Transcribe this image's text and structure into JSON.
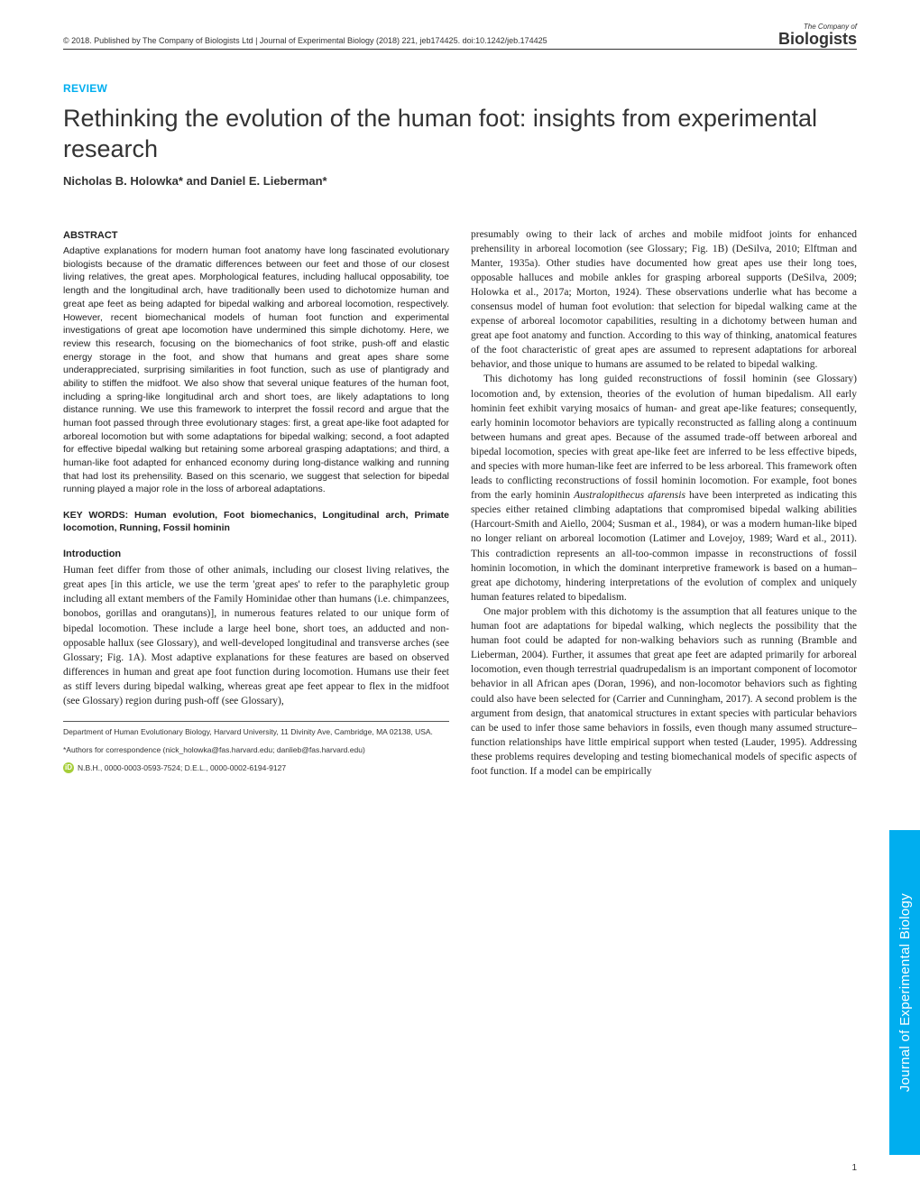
{
  "header": {
    "copyright_line": "© 2018. Published by The Company of Biologists Ltd | Journal of Experimental Biology (2018) 221, jeb174425. doi:10.1242/jeb.174425"
  },
  "logo": {
    "small": "The Company of",
    "big": "Biologists"
  },
  "review_label": "REVIEW",
  "title": "Rethinking the evolution of the human foot: insights from experimental research",
  "authors": "Nicholas B. Holowka* and Daniel E. Lieberman*",
  "abstract_head": "ABSTRACT",
  "abstract_body": "Adaptive explanations for modern human foot anatomy have long fascinated evolutionary biologists because of the dramatic differences between our feet and those of our closest living relatives, the great apes. Morphological features, including hallucal opposability, toe length and the longitudinal arch, have traditionally been used to dichotomize human and great ape feet as being adapted for bipedal walking and arboreal locomotion, respectively. However, recent biomechanical models of human foot function and experimental investigations of great ape locomotion have undermined this simple dichotomy. Here, we review this research, focusing on the biomechanics of foot strike, push-off and elastic energy storage in the foot, and show that humans and great apes share some underappreciated, surprising similarities in foot function, such as use of plantigrady and ability to stiffen the midfoot. We also show that several unique features of the human foot, including a spring-like longitudinal arch and short toes, are likely adaptations to long distance running. We use this framework to interpret the fossil record and argue that the human foot passed through three evolutionary stages: first, a great ape-like foot adapted for arboreal locomotion but with some adaptations for bipedal walking; second, a foot adapted for effective bipedal walking but retaining some arboreal grasping adaptations; and third, a human-like foot adapted for enhanced economy during long-distance walking and running that had lost its prehensility. Based on this scenario, we suggest that selection for bipedal running played a major role in the loss of arboreal adaptations.",
  "keywords": "KEY WORDS: Human evolution, Foot biomechanics, Longitudinal arch, Primate locomotion, Running, Fossil hominin",
  "intro_head": "Introduction",
  "intro_p1": "Human feet differ from those of other animals, including our closest living relatives, the great apes [in this article, we use the term 'great apes' to refer to the paraphyletic group including all extant members of the Family Hominidae other than humans (i.e. chimpanzees, bonobos, gorillas and orangutans)], in numerous features related to our unique form of bipedal locomotion. These include a large heel bone, short toes, an adducted and non-opposable hallux (see Glossary), and well-developed longitudinal and transverse arches (see Glossary; Fig. 1A). Most adaptive explanations for these features are based on observed differences in human and great ape foot function during locomotion. Humans use their feet as stiff levers during bipedal walking, whereas great ape feet appear to flex in the midfoot (see Glossary) region during push-off (see Glossary),",
  "col2_p1": "presumably owing to their lack of arches and mobile midfoot joints for enhanced prehensility in arboreal locomotion (see Glossary; Fig. 1B) (DeSilva, 2010; Elftman and Manter, 1935a). Other studies have documented how great apes use their long toes, opposable halluces and mobile ankles for grasping arboreal supports (DeSilva, 2009; Holowka et al., 2017a; Morton, 1924). These observations underlie what has become a consensus model of human foot evolution: that selection for bipedal walking came at the expense of arboreal locomotor capabilities, resulting in a dichotomy between human and great ape foot anatomy and function. According to this way of thinking, anatomical features of the foot characteristic of great apes are assumed to represent adaptations for arboreal behavior, and those unique to humans are assumed to be related to bipedal walking.",
  "col2_p2_a": "This dichotomy has long guided reconstructions of fossil hominin (see Glossary) locomotion and, by extension, theories of the evolution of human bipedalism. All early hominin feet exhibit varying mosaics of human- and great ape-like features; consequently, early hominin locomotor behaviors are typically reconstructed as falling along a continuum between humans and great apes. Because of the assumed trade-off between arboreal and bipedal locomotion, species with great ape-like feet are inferred to be less effective bipeds, and species with more human-like feet are inferred to be less arboreal. This framework often leads to conflicting reconstructions of fossil hominin locomotion. For example, foot bones from the early hominin ",
  "col2_p2_species": "Australopithecus afarensis",
  "col2_p2_b": " have been interpreted as indicating this species either retained climbing adaptations that compromised bipedal walking abilities (Harcourt-Smith and Aiello, 2004; Susman et al., 1984), or was a modern human-like biped no longer reliant on arboreal locomotion (Latimer and Lovejoy, 1989; Ward et al., 2011). This contradiction represents an all-too-common impasse in reconstructions of fossil hominin locomotion, in which the dominant interpretive framework is based on a human–great ape dichotomy, hindering interpretations of the evolution of complex and uniquely human features related to bipedalism.",
  "col2_p3": "One major problem with this dichotomy is the assumption that all features unique to the human foot are adaptations for bipedal walking, which neglects the possibility that the human foot could be adapted for non-walking behaviors such as running (Bramble and Lieberman, 2004). Further, it assumes that great ape feet are adapted primarily for arboreal locomotion, even though terrestrial quadrupedalism is an important component of locomotor behavior in all African apes (Doran, 1996), and non-locomotor behaviors such as fighting could also have been selected for (Carrier and Cunningham, 2017). A second problem is the argument from design, that anatomical structures in extant species with particular behaviors can be used to infer those same behaviors in fossils, even though many assumed structure–function relationships have little empirical support when tested (Lauder, 1995). Addressing these problems requires developing and testing biomechanical models of specific aspects of foot function. If a model can be empirically",
  "footnote_dept": "Department of Human Evolutionary Biology, Harvard University, 11 Divinity Ave, Cambridge, MA 02138, USA.",
  "footnote_corr": "*Authors for correspondence (nick_holowka@fas.harvard.edu; danlieb@fas.harvard.edu)",
  "orcid_line": "N.B.H., 0000-0003-0593-7524; D.E.L., 0000-0002-6194-9127",
  "side_tab": "Journal of Experimental Biology",
  "page_number": "1",
  "colors": {
    "accent": "#00aeef",
    "orcid_green": "#a6ce39",
    "text": "#222222",
    "background": "#ffffff"
  }
}
